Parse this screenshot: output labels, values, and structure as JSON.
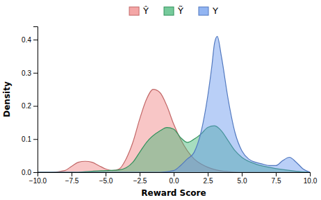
{
  "chart_data": {
    "type": "area",
    "xlabel": "Reward Score",
    "ylabel": "Density",
    "xlim": [
      -10,
      10
    ],
    "ylim": [
      0,
      0.44
    ],
    "xticks": [
      {
        "value": -10,
        "label": "−10.0"
      },
      {
        "value": -7.5,
        "label": "−7.5"
      },
      {
        "value": -5.0,
        "label": "−5.0"
      },
      {
        "value": -2.5,
        "label": "−2.5"
      },
      {
        "value": 0.0,
        "label": "0.0"
      },
      2.5,
      {
        "value": 5.0,
        "label": "5.0"
      },
      7.5,
      {
        "value": 10.0,
        "label": "10.0"
      }
    ],
    "yticks": [
      {
        "value": 0.0,
        "label": "0.0"
      },
      0.1,
      0.2,
      0.3,
      0.4
    ],
    "grid": false,
    "legend": "top",
    "series": [
      {
        "name": "Ŷ",
        "color": "#f08080",
        "x": [
          -10,
          -9,
          -8,
          -7.5,
          -7,
          -6.5,
          -6,
          -5.5,
          -5,
          -4.5,
          -4,
          -3.5,
          -3,
          -2.5,
          -2,
          -1.5,
          -1,
          -0.5,
          0,
          0.5,
          1,
          1.5,
          2,
          2.5,
          3,
          3.5,
          4,
          5,
          6,
          7,
          8,
          10
        ],
        "values": [
          0,
          0,
          0.005,
          0.018,
          0.03,
          0.033,
          0.03,
          0.02,
          0.01,
          0.005,
          0.01,
          0.04,
          0.09,
          0.16,
          0.22,
          0.25,
          0.24,
          0.2,
          0.145,
          0.1,
          0.065,
          0.04,
          0.025,
          0.015,
          0.008,
          0.004,
          0.002,
          0,
          0,
          0,
          0,
          0
        ]
      },
      {
        "name": "Ỹ",
        "color": "#3cb371",
        "x": [
          -10,
          -7,
          -6,
          -5,
          -4,
          -3,
          -2.5,
          -2,
          -1,
          -0.5,
          0,
          0.5,
          1,
          1.5,
          2,
          2.5,
          3,
          3.5,
          4,
          4.5,
          5,
          6,
          7,
          8,
          9,
          10
        ],
        "values": [
          0,
          0,
          0.003,
          0.005,
          0.007,
          0.03,
          0.06,
          0.09,
          0.125,
          0.135,
          0.13,
          0.105,
          0.09,
          0.1,
          0.115,
          0.135,
          0.14,
          0.125,
          0.095,
          0.065,
          0.045,
          0.025,
          0.015,
          0.008,
          0.003,
          0
        ]
      },
      {
        "name": "Y",
        "color": "#6495ed",
        "x": [
          -10,
          -5,
          -3,
          -1,
          0,
          0.5,
          1,
          1.5,
          2,
          2.5,
          2.8,
          3,
          3.2,
          3.5,
          4,
          4.5,
          5,
          5.5,
          6,
          6.5,
          7,
          7.5,
          8,
          8.5,
          9,
          9.5,
          10
        ],
        "values": [
          0,
          0,
          0,
          0,
          0.005,
          0.02,
          0.04,
          0.06,
          0.12,
          0.23,
          0.32,
          0.39,
          0.41,
          0.35,
          0.22,
          0.12,
          0.065,
          0.04,
          0.03,
          0.025,
          0.02,
          0.02,
          0.035,
          0.045,
          0.03,
          0.01,
          0
        ]
      }
    ]
  }
}
